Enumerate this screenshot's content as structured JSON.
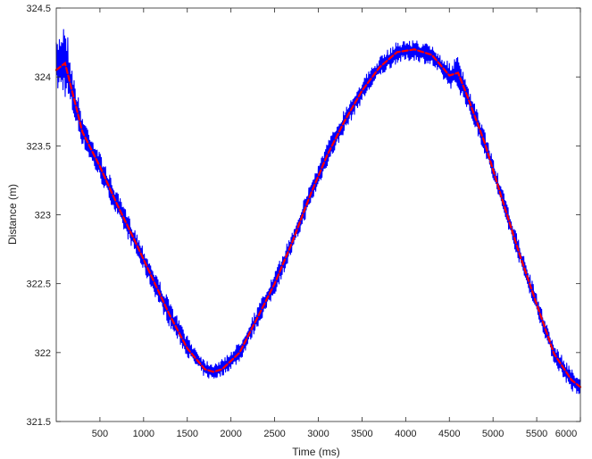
{
  "chart_data": {
    "type": "line",
    "title": "",
    "xlabel": "Time (ms)",
    "ylabel": "Distance (m)",
    "xlim": [
      0,
      6000
    ],
    "ylim": [
      321.5,
      324.5
    ],
    "xticks": [
      500,
      1000,
      1500,
      2000,
      2500,
      3000,
      3500,
      4000,
      4500,
      5000,
      5500,
      6000
    ],
    "xtick_labels": [
      "500",
      "1000",
      "1500",
      "2000",
      "2500",
      "3000",
      "3500",
      "4000",
      "4500",
      "5000",
      "5500",
      "6000"
    ],
    "yticks": [
      321.5,
      322,
      322.5,
      323,
      323.5,
      324,
      324.5
    ],
    "ytick_labels": [
      "321.5",
      "322",
      "322.5",
      "323",
      "323.5",
      "324",
      "324.5"
    ],
    "grid": false,
    "legend": "none",
    "series": [
      {
        "color": "#0000ff",
        "style": "noisy band",
        "x": [
          0,
          100,
          200,
          300,
          500,
          700,
          900,
          1100,
          1300,
          1500,
          1700,
          1800,
          1900,
          2100,
          2300,
          2500,
          2700,
          2900,
          3100,
          3300,
          3500,
          3700,
          3900,
          4100,
          4300,
          4500,
          4600,
          4700,
          4900,
          5100,
          5300,
          5500,
          5700,
          5900,
          6000
        ],
        "y_low": [
          323.9,
          323.85,
          323.7,
          323.5,
          323.25,
          322.98,
          322.72,
          322.45,
          322.18,
          321.97,
          321.82,
          321.8,
          321.83,
          321.93,
          322.18,
          322.42,
          322.72,
          323.05,
          323.35,
          323.6,
          323.82,
          324.0,
          324.1,
          324.12,
          324.08,
          323.92,
          323.9,
          323.78,
          323.45,
          323.05,
          322.65,
          322.28,
          321.92,
          321.72,
          321.66
        ],
        "y_high": [
          324.25,
          324.45,
          324.0,
          323.72,
          323.45,
          323.16,
          322.9,
          322.63,
          322.37,
          322.12,
          321.95,
          321.93,
          321.95,
          322.08,
          322.33,
          322.58,
          322.88,
          323.22,
          323.52,
          323.77,
          323.98,
          324.14,
          324.26,
          324.27,
          324.23,
          324.1,
          324.15,
          323.95,
          323.62,
          323.2,
          322.8,
          322.42,
          322.06,
          321.88,
          321.84
        ]
      },
      {
        "color": "#ff0000",
        "style": "line",
        "x": [
          0,
          100,
          200,
          300,
          500,
          700,
          900,
          1100,
          1300,
          1500,
          1700,
          1800,
          1900,
          2100,
          2300,
          2500,
          2700,
          2900,
          3100,
          3300,
          3500,
          3700,
          3900,
          4100,
          4300,
          4500,
          4600,
          4700,
          4900,
          5100,
          5300,
          5500,
          5700,
          5900,
          6000
        ],
        "y": [
          324.05,
          324.1,
          323.85,
          323.6,
          323.35,
          323.07,
          322.81,
          322.54,
          322.27,
          322.03,
          321.88,
          321.86,
          321.88,
          322.0,
          322.25,
          322.5,
          322.8,
          323.13,
          323.43,
          323.68,
          323.9,
          324.07,
          324.18,
          324.2,
          324.16,
          324.01,
          324.03,
          323.87,
          323.53,
          323.12,
          322.72,
          322.35,
          321.99,
          321.8,
          321.75
        ]
      }
    ]
  }
}
